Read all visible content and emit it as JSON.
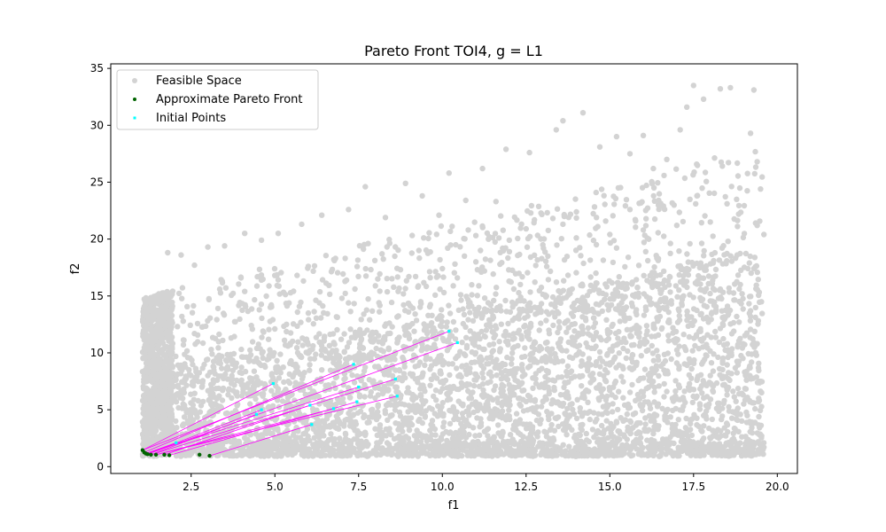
{
  "chart_data": {
    "type": "scatter",
    "title": "Pareto Front TOI4, g = L1",
    "xlabel": "f1",
    "ylabel": "f2",
    "xlim": [
      0.1,
      20.6
    ],
    "ylim": [
      -0.6,
      35.4
    ],
    "xticks": [
      2.5,
      5.0,
      7.5,
      10.0,
      12.5,
      15.0,
      17.5,
      20.0
    ],
    "xtick_labels": [
      "2.5",
      "5.0",
      "7.5",
      "10.0",
      "12.5",
      "15.0",
      "17.5",
      "20.0"
    ],
    "yticks": [
      0,
      5,
      10,
      15,
      20,
      25,
      30,
      35
    ],
    "ytick_labels": [
      "0",
      "5",
      "10",
      "15",
      "20",
      "25",
      "30",
      "35"
    ],
    "grid": false,
    "legend": {
      "position": "top-left",
      "entries": [
        "Feasible Space",
        "Approximate Pareto Front",
        "Initial Points"
      ]
    },
    "colors": {
      "feasible": "#d3d3d3",
      "pareto": "#006400",
      "initial": "#00ffff",
      "trajectory": "#ff00ff"
    },
    "series": [
      {
        "name": "Feasible Space",
        "sample_points": [
          [
            1.3,
            11.2
          ],
          [
            1.5,
            14.4
          ],
          [
            1.8,
            18.8
          ],
          [
            2.2,
            18.6
          ],
          [
            2.6,
            17.7
          ],
          [
            3.0,
            19.3
          ],
          [
            3.5,
            19.4
          ],
          [
            4.1,
            20.5
          ],
          [
            4.6,
            19.9
          ],
          [
            5.1,
            20.5
          ],
          [
            5.8,
            21.3
          ],
          [
            6.4,
            22.1
          ],
          [
            7.2,
            22.6
          ],
          [
            7.7,
            24.6
          ],
          [
            8.3,
            21.9
          ],
          [
            8.9,
            24.9
          ],
          [
            9.4,
            23.8
          ],
          [
            9.9,
            22.1
          ],
          [
            10.2,
            25.8
          ],
          [
            10.7,
            23.4
          ],
          [
            11.2,
            26.2
          ],
          [
            11.6,
            23.3
          ],
          [
            11.9,
            27.9
          ],
          [
            12.6,
            27.6
          ],
          [
            13.4,
            29.6
          ],
          [
            13.6,
            30.4
          ],
          [
            14.2,
            31.1
          ],
          [
            14.7,
            28.1
          ],
          [
            15.2,
            29.0
          ],
          [
            15.6,
            27.5
          ],
          [
            16.0,
            29.1
          ],
          [
            16.3,
            26.2
          ],
          [
            16.7,
            27.0
          ],
          [
            17.1,
            29.6
          ],
          [
            17.3,
            31.6
          ],
          [
            17.5,
            33.5
          ],
          [
            17.8,
            32.3
          ],
          [
            18.3,
            33.2
          ],
          [
            18.6,
            33.3
          ],
          [
            19.3,
            33.1
          ],
          [
            19.2,
            29.3
          ],
          [
            19.4,
            26.8
          ],
          [
            19.5,
            24.4
          ],
          [
            19.4,
            21.2
          ],
          [
            19.6,
            20.4
          ],
          [
            19.3,
            17.4
          ],
          [
            19.2,
            13.7
          ],
          [
            19.4,
            10.8
          ],
          [
            19.5,
            7.5
          ],
          [
            19.3,
            5.6
          ],
          [
            19.2,
            3.8
          ],
          [
            19.6,
            1.7
          ],
          [
            18.9,
            4.6
          ],
          [
            18.5,
            6.3
          ],
          [
            18.0,
            8.0
          ],
          [
            17.6,
            7.6
          ],
          [
            17.2,
            5.9
          ],
          [
            16.7,
            6.6
          ],
          [
            16.2,
            7.8
          ],
          [
            15.4,
            8.6
          ],
          [
            14.6,
            9.2
          ],
          [
            14.0,
            9.8
          ],
          [
            13.2,
            10.1
          ],
          [
            12.6,
            11.2
          ],
          [
            11.9,
            11.0
          ],
          [
            11.1,
            9.2
          ],
          [
            10.8,
            6.0
          ],
          [
            12.0,
            5.8
          ],
          [
            13.7,
            6.1
          ],
          [
            15.7,
            4.6
          ],
          [
            17.4,
            4.1
          ],
          [
            18.2,
            2.6
          ],
          [
            16.4,
            3.6
          ],
          [
            14.3,
            2.9
          ],
          [
            12.1,
            2.4
          ],
          [
            10.4,
            1.8
          ],
          [
            8.8,
            1.5
          ],
          [
            7.2,
            1.3
          ],
          [
            5.6,
            1.2
          ],
          [
            4.1,
            1.2
          ],
          [
            2.8,
            1.2
          ],
          [
            1.7,
            1.1
          ],
          [
            1.1,
            1.2
          ],
          [
            1.15,
            3.0
          ],
          [
            1.2,
            5.5
          ],
          [
            1.2,
            8.4
          ],
          [
            1.25,
            10.5
          ],
          [
            1.9,
            9.0
          ],
          [
            2.6,
            11.7
          ],
          [
            3.3,
            13.9
          ],
          [
            4.1,
            15.4
          ],
          [
            5.0,
            16.8
          ],
          [
            6.0,
            17.6
          ],
          [
            7.1,
            18.3
          ],
          [
            8.2,
            18.7
          ],
          [
            9.3,
            19.0
          ],
          [
            10.4,
            19.5
          ],
          [
            11.4,
            20.2
          ],
          [
            12.5,
            20.9
          ],
          [
            13.6,
            21.3
          ],
          [
            14.6,
            21.9
          ],
          [
            15.6,
            22.6
          ],
          [
            16.6,
            22.9
          ],
          [
            17.6,
            23.8
          ],
          [
            18.5,
            23.1
          ],
          [
            18.8,
            18.6
          ],
          [
            18.1,
            18.1
          ],
          [
            17.3,
            17.4
          ],
          [
            16.4,
            16.8
          ],
          [
            15.4,
            16.1
          ],
          [
            14.4,
            15.4
          ],
          [
            13.4,
            14.6
          ],
          [
            12.4,
            13.7
          ],
          [
            11.4,
            12.9
          ],
          [
            10.4,
            12.0
          ],
          [
            9.4,
            11.2
          ],
          [
            8.4,
            10.3
          ],
          [
            7.4,
            9.4
          ],
          [
            6.4,
            8.5
          ],
          [
            5.4,
            7.5
          ],
          [
            4.4,
            6.4
          ],
          [
            3.4,
            5.2
          ],
          [
            2.4,
            3.8
          ],
          [
            1.6,
            2.4
          ],
          [
            2.0,
            6.0
          ],
          [
            3.0,
            8.0
          ],
          [
            4.0,
            10.3
          ],
          [
            5.0,
            12.1
          ],
          [
            6.0,
            13.5
          ],
          [
            7.0,
            14.8
          ],
          [
            8.0,
            15.9
          ],
          [
            9.0,
            16.7
          ],
          [
            10.0,
            17.4
          ],
          [
            11.0,
            18.0
          ],
          [
            12.0,
            18.9
          ],
          [
            13.0,
            19.5
          ],
          [
            14.0,
            20.1
          ],
          [
            15.0,
            20.4
          ],
          [
            16.0,
            20.8
          ],
          [
            17.0,
            21.2
          ],
          [
            18.0,
            21.5
          ],
          [
            17.2,
            15.0
          ],
          [
            16.5,
            13.2
          ],
          [
            15.8,
            12.4
          ],
          [
            14.9,
            12.9
          ],
          [
            15.2,
            10.7
          ],
          [
            16.9,
            11.1
          ],
          [
            17.8,
            13.0
          ],
          [
            18.3,
            15.6
          ],
          [
            18.7,
            11.9
          ],
          [
            18.1,
            9.9
          ],
          [
            17.0,
            9.1
          ],
          [
            12.8,
            7.3
          ],
          [
            11.5,
            4.2
          ],
          [
            9.7,
            3.4
          ],
          [
            8.1,
            4.4
          ],
          [
            6.3,
            3.1
          ],
          [
            4.6,
            2.8
          ],
          [
            3.2,
            2.4
          ]
        ]
      },
      {
        "name": "Approximate Pareto Front",
        "points": [
          [
            1.05,
            1.45
          ],
          [
            1.1,
            1.25
          ],
          [
            1.15,
            1.15
          ],
          [
            1.2,
            1.1
          ],
          [
            1.3,
            1.05
          ],
          [
            1.45,
            1.05
          ],
          [
            1.7,
            1.05
          ],
          [
            1.85,
            1.0
          ],
          [
            2.75,
            1.05
          ],
          [
            3.05,
            0.95
          ]
        ]
      },
      {
        "name": "Initial Points",
        "points": [
          [
            10.2,
            11.9
          ],
          [
            10.45,
            10.9
          ],
          [
            7.35,
            9.0
          ],
          [
            8.6,
            7.7
          ],
          [
            7.5,
            7.0
          ],
          [
            4.95,
            7.3
          ],
          [
            8.65,
            6.2
          ],
          [
            4.6,
            5.0
          ],
          [
            6.05,
            5.4
          ],
          [
            7.45,
            5.7
          ],
          [
            4.45,
            4.6
          ],
          [
            6.75,
            5.1
          ],
          [
            6.1,
            3.7
          ],
          [
            2.05,
            2.1
          ]
        ]
      }
    ],
    "trajectories": [
      {
        "from": [
          10.2,
          11.9
        ],
        "to": [
          1.05,
          1.45
        ]
      },
      {
        "from": [
          10.45,
          10.9
        ],
        "to": [
          1.2,
          1.1
        ]
      },
      {
        "from": [
          7.35,
          9.0
        ],
        "to": [
          1.1,
          1.25
        ]
      },
      {
        "from": [
          8.6,
          7.7
        ],
        "to": [
          1.3,
          1.05
        ]
      },
      {
        "from": [
          7.5,
          7.0
        ],
        "to": [
          1.15,
          1.15
        ]
      },
      {
        "from": [
          4.95,
          7.3
        ],
        "to": [
          1.05,
          1.45
        ]
      },
      {
        "from": [
          8.65,
          6.2
        ],
        "to": [
          1.45,
          1.05
        ]
      },
      {
        "from": [
          4.6,
          5.0
        ],
        "to": [
          1.2,
          1.1
        ]
      },
      {
        "from": [
          6.05,
          5.4
        ],
        "to": [
          1.7,
          1.05
        ]
      },
      {
        "from": [
          7.45,
          5.7
        ],
        "to": [
          1.85,
          1.0
        ]
      },
      {
        "from": [
          4.45,
          4.6
        ],
        "to": [
          1.3,
          1.05
        ]
      },
      {
        "from": [
          6.75,
          5.1
        ],
        "to": [
          1.45,
          1.05
        ]
      },
      {
        "from": [
          6.1,
          3.7
        ],
        "to": [
          3.05,
          0.95
        ]
      },
      {
        "from": [
          2.05,
          2.1
        ],
        "to": [
          1.15,
          1.15
        ]
      }
    ]
  }
}
